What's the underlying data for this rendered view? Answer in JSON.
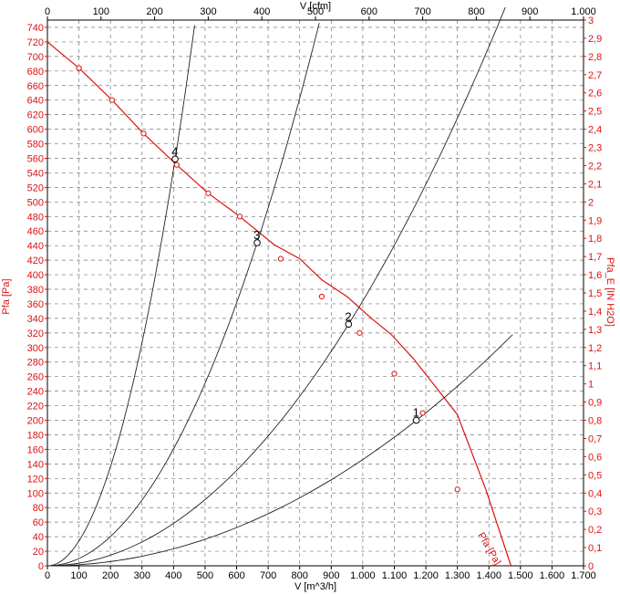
{
  "chart_data": {
    "type": "line",
    "colors": {
      "pressure": "#dd1111",
      "system": "#222222",
      "frame": "#000000"
    },
    "axes": {
      "bottom": {
        "label": "V [m^3/h]",
        "range": [
          0,
          1700
        ],
        "ticks": [
          "0",
          "100",
          "200",
          "300",
          "400",
          "500",
          "600",
          "700",
          "800",
          "900",
          "1.000",
          "1.100",
          "1.200",
          "1.300",
          "1.400",
          "1.500",
          "1.600",
          "1.700"
        ]
      },
      "top": {
        "label": "V [cfm]",
        "range": [
          0,
          1000
        ],
        "ticks": [
          "0",
          "100",
          "200",
          "300",
          "400",
          "500",
          "600",
          "700",
          "800",
          "900",
          "1.000"
        ]
      },
      "left": {
        "label": "Pfa [Pa]",
        "range": [
          0,
          750
        ],
        "ticks": [
          "0",
          "20",
          "40",
          "60",
          "80",
          "100",
          "120",
          "140",
          "160",
          "180",
          "200",
          "220",
          "240",
          "260",
          "280",
          "300",
          "320",
          "340",
          "360",
          "380",
          "400",
          "420",
          "440",
          "460",
          "480",
          "500",
          "520",
          "540",
          "560",
          "580",
          "600",
          "620",
          "640",
          "660",
          "680",
          "700",
          "720",
          "740"
        ]
      },
      "right": {
        "label": "Pfa_E [IN H2O]",
        "range": [
          0,
          3
        ],
        "ticks": [
          "0",
          "0,1",
          "0,2",
          "0,3",
          "0,4",
          "0,5",
          "0,6",
          "0,7",
          "0,8",
          "0,9",
          "1",
          "1,1",
          "1,2",
          "1,3",
          "1,4",
          "1,5",
          "1,6",
          "1,7",
          "1,8",
          "1,9",
          "2",
          "2,1",
          "2,2",
          "2,3",
          "2,4",
          "2,5",
          "2,6",
          "2,7",
          "2,8",
          "2,9",
          "3"
        ]
      }
    },
    "grid": true,
    "series": [
      {
        "name": "Pfa [Pa]",
        "kind": "fan-curve",
        "points": [
          [
            0,
            720
          ],
          [
            100,
            684
          ],
          [
            205,
            640
          ],
          [
            305,
            594
          ],
          [
            410,
            551
          ],
          [
            510,
            512
          ],
          [
            610,
            480
          ],
          [
            720,
            441
          ],
          [
            800,
            422
          ],
          [
            870,
            393
          ],
          [
            950,
            370
          ],
          [
            1030,
            339
          ],
          [
            1090,
            318
          ],
          [
            1160,
            285
          ],
          [
            1220,
            252
          ],
          [
            1300,
            208
          ],
          [
            1390,
            105
          ],
          [
            1470,
            0
          ]
        ],
        "markers": [
          [
            100,
            684
          ],
          [
            205,
            640
          ],
          [
            305,
            594
          ],
          [
            410,
            551
          ],
          [
            510,
            512
          ],
          [
            610,
            480
          ],
          [
            740,
            422
          ],
          [
            870,
            370
          ],
          [
            990,
            320
          ],
          [
            1100,
            264
          ],
          [
            1190,
            210
          ],
          [
            1300,
            105
          ]
        ]
      },
      {
        "name": "1",
        "kind": "system",
        "k": 0.000146,
        "x_max": 1475
      },
      {
        "name": "2",
        "kind": "system",
        "k": 0.000364,
        "x_max": 1452
      },
      {
        "name": "3",
        "kind": "system",
        "k": 0.001004,
        "x_max": 862
      },
      {
        "name": "4",
        "kind": "system",
        "k": 0.003407,
        "x_max": 467
      }
    ],
    "operating_points": [
      {
        "label": "1",
        "x": 1170,
        "y": 200
      },
      {
        "label": "2",
        "x": 955,
        "y": 332
      },
      {
        "label": "3",
        "x": 665,
        "y": 444
      },
      {
        "label": "4",
        "x": 405,
        "y": 559
      }
    ]
  }
}
